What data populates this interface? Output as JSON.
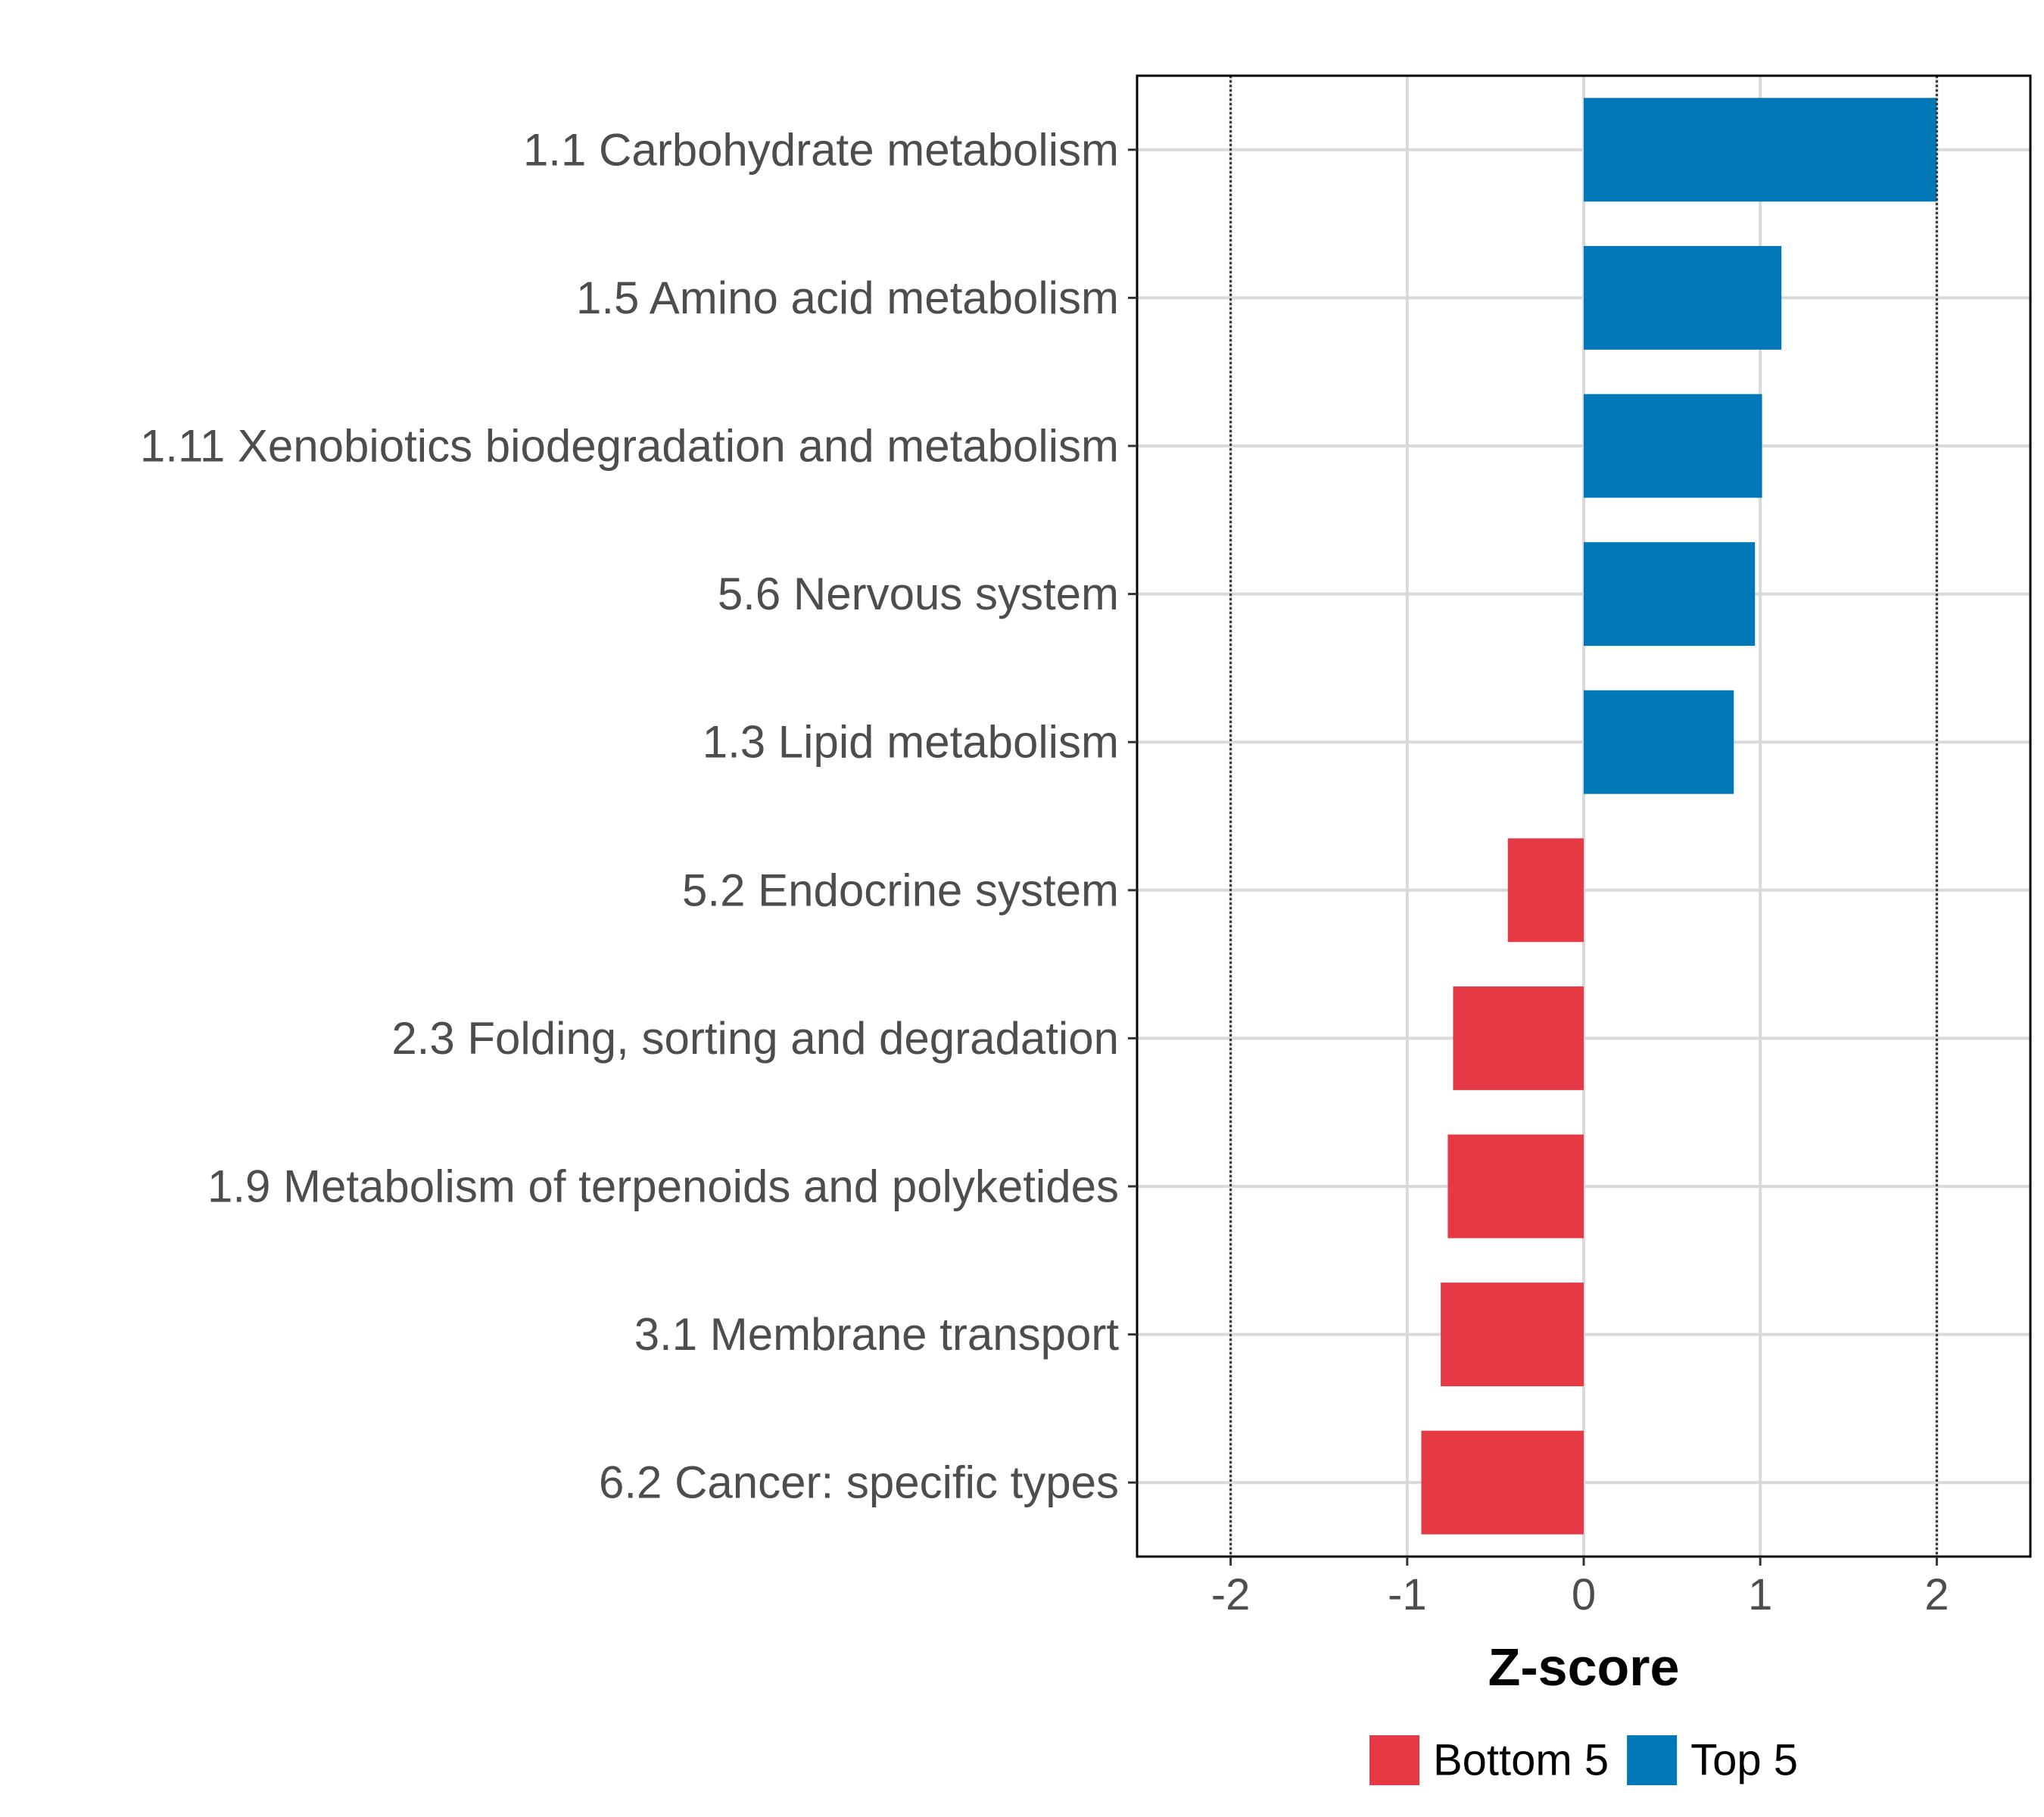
{
  "chart_data": {
    "type": "bar",
    "orientation": "horizontal",
    "title": "",
    "xlabel": "Z-score",
    "ylabel": "",
    "xlim": [
      -2.53,
      2.53
    ],
    "xticks": [
      -2,
      -1,
      0,
      1,
      2
    ],
    "xtick_labels": [
      "-2",
      "-1",
      "0",
      "1",
      "2"
    ],
    "reference_lines": [
      -2,
      2
    ],
    "grid": true,
    "categories": [
      "1.1 Carbohydrate metabolism",
      "1.5 Amino acid metabolism",
      "1.11 Xenobiotics biodegradation and metabolism",
      "5.6 Nervous system",
      "1.3 Lipid metabolism",
      "5.2 Endocrine system",
      "2.3 Folding, sorting and degradation",
      "1.9 Metabolism of terpenoids and polyketides",
      "3.1 Membrane transport",
      "6.2 Cancer: specific types"
    ],
    "values": [
      2.0,
      1.12,
      1.01,
      0.97,
      0.85,
      -0.43,
      -0.74,
      -0.77,
      -0.81,
      -0.92
    ],
    "groups": [
      "Top 5",
      "Top 5",
      "Top 5",
      "Top 5",
      "Top 5",
      "Bottom 5",
      "Bottom 5",
      "Bottom 5",
      "Bottom 5",
      "Bottom 5"
    ],
    "legend": {
      "placement": "bottom",
      "entries": [
        {
          "label": "Bottom 5",
          "color": "#e63946"
        },
        {
          "label": "Top 5",
          "color": "#0077b6"
        }
      ]
    }
  }
}
